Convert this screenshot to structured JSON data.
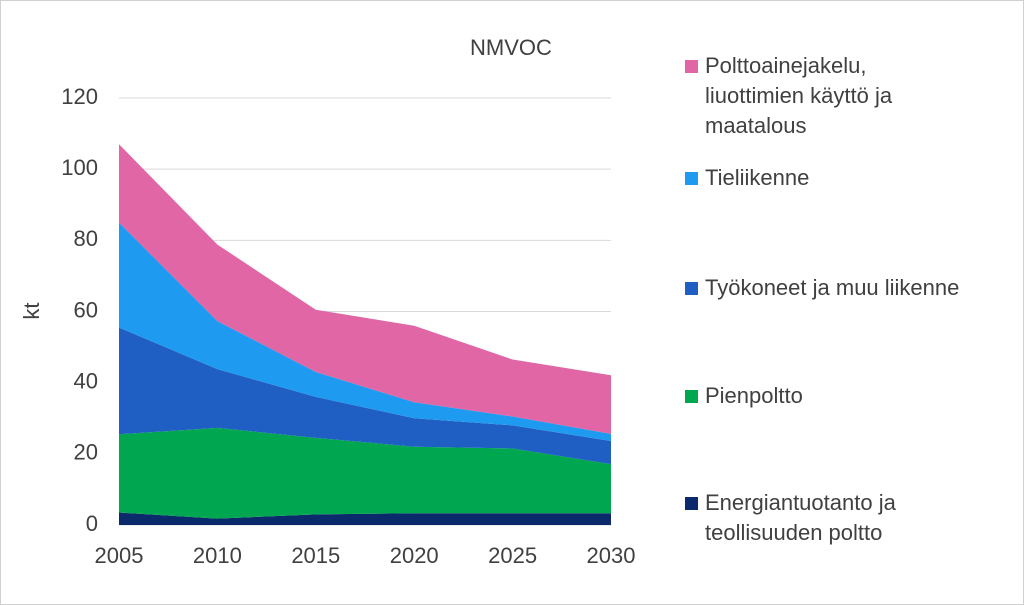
{
  "chart_data": {
    "type": "stacked_area",
    "title": "NMVOC",
    "y_label": "kt",
    "x": [
      2005,
      2010,
      2015,
      2020,
      2025,
      2030
    ],
    "xlim": [
      2005,
      2030
    ],
    "xticks": [
      2005,
      2010,
      2015,
      2020,
      2025,
      2030
    ],
    "ylim": [
      0,
      120
    ],
    "yticks": [
      0,
      20,
      40,
      60,
      80,
      100,
      120
    ],
    "grid": true,
    "legend": "right",
    "series": [
      {
        "name": "Energiantuotanto ja teollisuuden poltto",
        "color": "#0b2a6b",
        "values": [
          3.5,
          1.8,
          3,
          3.3,
          3.3,
          3.3
        ]
      },
      {
        "name": "Pienpoltto",
        "color": "#00a650",
        "values": [
          22,
          25.5,
          21.5,
          18.7,
          18.2,
          13.8
        ]
      },
      {
        "name": "Työkoneet ja muu liikenne",
        "color": "#1f5fc4",
        "values": [
          30,
          16.5,
          11.5,
          8,
          6.5,
          6.5
        ]
      },
      {
        "name": "Tieliikenne",
        "color": "#1e9bf0",
        "values": [
          29.5,
          13.5,
          7,
          4.5,
          2.5,
          2
        ]
      },
      {
        "name": "Polttoainejakelu, liuottimien käyttö ja maatalous",
        "color": "#e066a6",
        "values": [
          22,
          21.5,
          17.5,
          21.5,
          16,
          16.5
        ]
      }
    ]
  }
}
